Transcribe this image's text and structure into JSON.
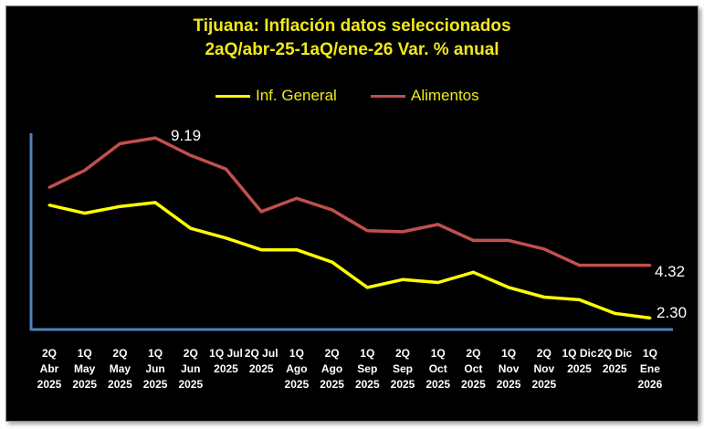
{
  "chart_data": {
    "type": "line",
    "title": "Tijuana: Inflación datos seleccionados",
    "subtitle": "2aQ/abr-25-1aQ/ene-26 Var. % anual",
    "categories": [
      [
        "2Q",
        "Abr",
        "2025"
      ],
      [
        "1Q",
        "May",
        "2025"
      ],
      [
        "2Q",
        "May",
        "2025"
      ],
      [
        "1Q",
        "Jun",
        "2025"
      ],
      [
        "2Q",
        "Jun",
        "2025"
      ],
      [
        "1Q Jul",
        "2025"
      ],
      [
        "2Q Jul",
        "2025"
      ],
      [
        "1Q",
        "Ago",
        "2025"
      ],
      [
        "2Q",
        "Ago",
        "2025"
      ],
      [
        "1Q",
        "Sep",
        "2025"
      ],
      [
        "2Q",
        "Sep",
        "2025"
      ],
      [
        "1Q",
        "Oct",
        "2025"
      ],
      [
        "2Q",
        "Oct",
        "2025"
      ],
      [
        "1Q",
        "Nov",
        "2025"
      ],
      [
        "2Q",
        "Nov",
        "2025"
      ],
      [
        "1Q Dic",
        "2025"
      ],
      [
        "2Q Dic",
        "2025"
      ],
      [
        "1Q",
        "Ene",
        "2026"
      ]
    ],
    "ylim": [
      2.0,
      9.3
    ],
    "series": [
      {
        "name": "Inf. General",
        "color": "#ffff00",
        "values": [
          6.62,
          6.31,
          6.57,
          6.72,
          5.73,
          5.36,
          4.91,
          4.91,
          4.44,
          3.47,
          3.77,
          3.66,
          4.05,
          3.47,
          3.1,
          3.0,
          2.48,
          2.3
        ]
      },
      {
        "name": "Alimentos",
        "color": "#c0504d",
        "values": [
          7.3,
          7.95,
          8.97,
          9.19,
          8.52,
          8.0,
          6.37,
          6.88,
          6.44,
          5.64,
          5.6,
          5.88,
          5.27,
          5.27,
          4.94,
          4.32,
          4.32,
          4.32
        ]
      }
    ],
    "data_labels": [
      {
        "series": 1,
        "index": 3,
        "text": "9.19"
      },
      {
        "series": 1,
        "index": 17,
        "text": "4.32"
      },
      {
        "series": 0,
        "index": 17,
        "text": "2.30"
      }
    ]
  }
}
